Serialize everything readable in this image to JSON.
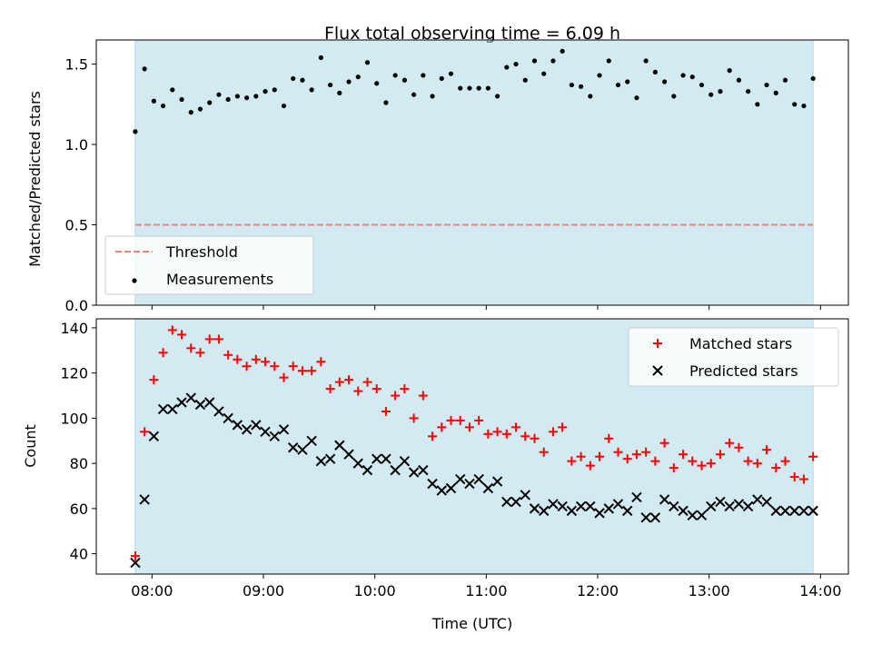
{
  "chart_data": [
    {
      "type": "scatter",
      "title": "Flux total observing time = 6.09 h",
      "xlabel": "",
      "ylabel": "Matched/Predicted stars",
      "xlim": [
        "07:30",
        "14:15"
      ],
      "ylim": [
        0,
        1.65
      ],
      "yticks": [
        0.0,
        0.5,
        1.0,
        1.5
      ],
      "ytick_labels": [
        "0.0",
        "0.5",
        "1.0",
        "1.5"
      ],
      "shaded_span": [
        "07:51",
        "13:56"
      ],
      "shade_color": "#add8e6",
      "legend": {
        "position": "lower left",
        "entries": [
          {
            "label": "Threshold",
            "style": "dashed-line",
            "color": "#f08080"
          },
          {
            "label": "Measurements",
            "style": "dot",
            "color": "#000000"
          }
        ]
      },
      "threshold": {
        "name": "Threshold",
        "y": 0.5,
        "x_range": [
          "07:51",
          "13:56"
        ],
        "color": "#f08080"
      },
      "series": [
        {
          "name": "Measurements",
          "color": "#000000",
          "x": [
            "07:51",
            "07:56",
            "08:01",
            "08:06",
            "08:11",
            "08:16",
            "08:21",
            "08:26",
            "08:31",
            "08:36",
            "08:41",
            "08:46",
            "08:51",
            "08:56",
            "09:01",
            "09:06",
            "09:11",
            "09:16",
            "09:21",
            "09:26",
            "09:31",
            "09:36",
            "09:41",
            "09:46",
            "09:51",
            "09:56",
            "10:01",
            "10:06",
            "10:11",
            "10:16",
            "10:21",
            "10:26",
            "10:31",
            "10:36",
            "10:41",
            "10:46",
            "10:51",
            "10:56",
            "11:01",
            "11:06",
            "11:11",
            "11:16",
            "11:21",
            "11:26",
            "11:31",
            "11:36",
            "11:41",
            "11:46",
            "11:51",
            "11:56",
            "12:01",
            "12:06",
            "12:11",
            "12:16",
            "12:21",
            "12:26",
            "12:31",
            "12:36",
            "12:41",
            "12:46",
            "12:51",
            "12:56",
            "13:01",
            "13:06",
            "13:11",
            "13:16",
            "13:21",
            "13:26",
            "13:31",
            "13:36",
            "13:41",
            "13:46",
            "13:51",
            "13:56"
          ],
          "y": [
            1.08,
            1.47,
            1.27,
            1.24,
            1.34,
            1.28,
            1.2,
            1.22,
            1.26,
            1.31,
            1.28,
            1.3,
            1.29,
            1.3,
            1.33,
            1.34,
            1.24,
            1.41,
            1.4,
            1.34,
            1.54,
            1.37,
            1.32,
            1.39,
            1.42,
            1.51,
            1.38,
            1.26,
            1.43,
            1.4,
            1.31,
            1.43,
            1.3,
            1.41,
            1.44,
            1.35,
            1.35,
            1.35,
            1.35,
            1.3,
            1.48,
            1.5,
            1.4,
            1.52,
            1.44,
            1.52,
            1.58,
            1.37,
            1.36,
            1.3,
            1.43,
            1.52,
            1.37,
            1.39,
            1.29,
            1.52,
            1.45,
            1.39,
            1.3,
            1.43,
            1.42,
            1.37,
            1.31,
            1.33,
            1.46,
            1.4,
            1.33,
            1.25,
            1.37,
            1.32,
            1.4,
            1.25,
            1.24,
            1.41
          ]
        }
      ]
    },
    {
      "type": "scatter",
      "title": "",
      "xlabel": "Time (UTC)",
      "ylabel": "Count",
      "xlim": [
        "07:30",
        "14:15"
      ],
      "ylim": [
        31,
        144
      ],
      "yticks": [
        40,
        60,
        80,
        100,
        120,
        140
      ],
      "ytick_labels": [
        "40",
        "60",
        "80",
        "100",
        "120",
        "140"
      ],
      "xticks": [
        "08:00",
        "09:00",
        "10:00",
        "11:00",
        "12:00",
        "13:00",
        "14:00"
      ],
      "xtick_labels": [
        "08:00",
        "09:00",
        "10:00",
        "11:00",
        "12:00",
        "13:00",
        "14:00"
      ],
      "shaded_span": [
        "07:51",
        "13:56"
      ],
      "shade_color": "#add8e6",
      "legend": {
        "position": "upper right",
        "entries": [
          {
            "label": "Matched stars",
            "style": "plus",
            "color": "#ff0000"
          },
          {
            "label": "Predicted stars",
            "style": "x",
            "color": "#000000"
          }
        ]
      },
      "series": [
        {
          "name": "Matched stars",
          "color": "#ff0000",
          "marker": "plus",
          "x": [
            "07:51",
            "07:56",
            "08:01",
            "08:06",
            "08:11",
            "08:16",
            "08:21",
            "08:26",
            "08:31",
            "08:36",
            "08:41",
            "08:46",
            "08:51",
            "08:56",
            "09:01",
            "09:06",
            "09:11",
            "09:16",
            "09:21",
            "09:26",
            "09:31",
            "09:36",
            "09:41",
            "09:46",
            "09:51",
            "09:56",
            "10:01",
            "10:06",
            "10:11",
            "10:16",
            "10:21",
            "10:26",
            "10:31",
            "10:36",
            "10:41",
            "10:46",
            "10:51",
            "10:56",
            "11:01",
            "11:06",
            "11:11",
            "11:16",
            "11:21",
            "11:26",
            "11:31",
            "11:36",
            "11:41",
            "11:46",
            "11:51",
            "11:56",
            "12:01",
            "12:06",
            "12:11",
            "12:16",
            "12:21",
            "12:26",
            "12:31",
            "12:36",
            "12:41",
            "12:46",
            "12:51",
            "12:56",
            "13:01",
            "13:06",
            "13:11",
            "13:16",
            "13:21",
            "13:26",
            "13:31",
            "13:36",
            "13:41",
            "13:46",
            "13:51",
            "13:56"
          ],
          "y": [
            39,
            94,
            117,
            129,
            139,
            137,
            131,
            129,
            135,
            135,
            128,
            126,
            123,
            126,
            125,
            123,
            118,
            123,
            121,
            121,
            125,
            113,
            116,
            117,
            112,
            116,
            113,
            103,
            110,
            113,
            100,
            110,
            92,
            96,
            99,
            99,
            96,
            99,
            93,
            94,
            93,
            96,
            92,
            91,
            85,
            94,
            96,
            81,
            83,
            79,
            83,
            91,
            85,
            82,
            84,
            85,
            81,
            89,
            78,
            84,
            81,
            79,
            80,
            84,
            89,
            87,
            81,
            80,
            86,
            78,
            81,
            74,
            73,
            83
          ]
        },
        {
          "name": "Predicted stars",
          "color": "#000000",
          "marker": "x",
          "x": [
            "07:51",
            "07:56",
            "08:01",
            "08:06",
            "08:11",
            "08:16",
            "08:21",
            "08:26",
            "08:31",
            "08:36",
            "08:41",
            "08:46",
            "08:51",
            "08:56",
            "09:01",
            "09:06",
            "09:11",
            "09:16",
            "09:21",
            "09:26",
            "09:31",
            "09:36",
            "09:41",
            "09:46",
            "09:51",
            "09:56",
            "10:01",
            "10:06",
            "10:11",
            "10:16",
            "10:21",
            "10:26",
            "10:31",
            "10:36",
            "10:41",
            "10:46",
            "10:51",
            "10:56",
            "11:01",
            "11:06",
            "11:11",
            "11:16",
            "11:21",
            "11:26",
            "11:31",
            "11:36",
            "11:41",
            "11:46",
            "11:51",
            "11:56",
            "12:01",
            "12:06",
            "12:11",
            "12:16",
            "12:21",
            "12:26",
            "12:31",
            "12:36",
            "12:41",
            "12:46",
            "12:51",
            "12:56",
            "13:01",
            "13:06",
            "13:11",
            "13:16",
            "13:21",
            "13:26",
            "13:31",
            "13:36",
            "13:41",
            "13:46",
            "13:51",
            "13:56"
          ],
          "y": [
            36,
            64,
            92,
            104,
            104,
            107,
            109,
            106,
            107,
            103,
            100,
            97,
            95,
            97,
            94,
            92,
            95,
            87,
            86,
            90,
            81,
            82,
            88,
            84,
            80,
            77,
            82,
            82,
            77,
            81,
            76,
            77,
            71,
            68,
            69,
            73,
            71,
            73,
            69,
            72,
            63,
            63,
            66,
            60,
            59,
            62,
            61,
            59,
            61,
            61,
            58,
            60,
            62,
            59,
            65,
            56,
            56,
            64,
            61,
            59,
            57,
            57,
            61,
            63,
            61,
            62,
            61,
            64,
            63,
            59,
            59,
            59,
            59,
            59
          ]
        }
      ]
    }
  ]
}
